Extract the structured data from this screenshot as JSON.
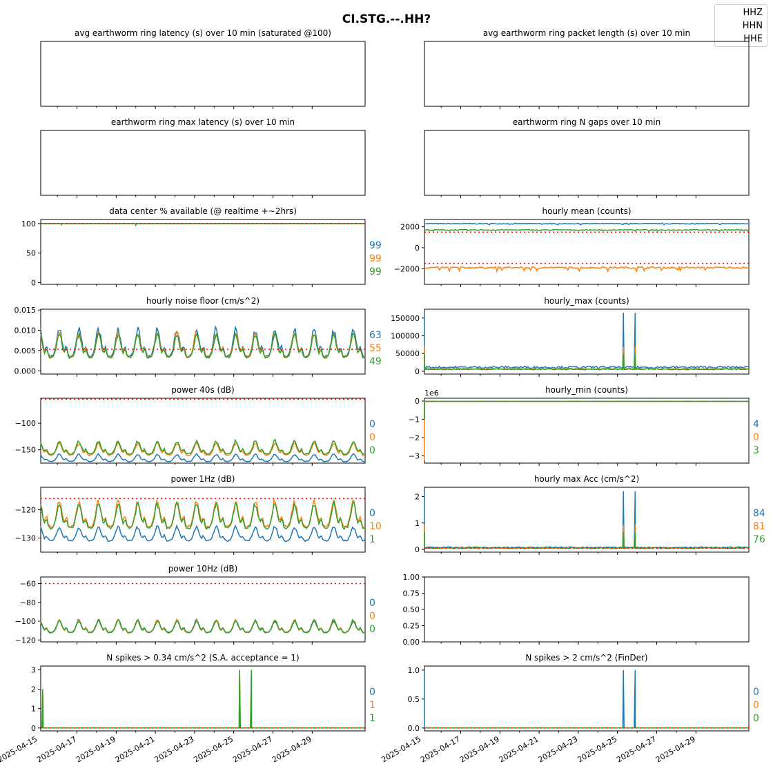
{
  "figure": {
    "suptitle": "CI.STG.--.HH?",
    "legend": [
      "HHZ",
      "HHN",
      "HHE"
    ],
    "colors": {
      "HHZ": "#1f77b4",
      "HHN": "#ff7f0e",
      "HHE": "#2ca02c",
      "threshold": "#ff0000"
    },
    "date_ticks": [
      "2025-04-15",
      "2025-04-17",
      "2025-04-19",
      "2025-04-21",
      "2025-04-23",
      "2025-04-25",
      "2025-04-27",
      "2025-04-29"
    ]
  },
  "chart_data": [
    {
      "id": "avg_latency",
      "type": "line",
      "title": "avg earthworm ring latency (s)   over 10 min (saturated @100)",
      "series": [],
      "stats": []
    },
    {
      "id": "avg_packet",
      "type": "line",
      "title": "avg earthworm ring packet length (s)   over 10 min",
      "series": [],
      "stats": []
    },
    {
      "id": "max_latency",
      "type": "line",
      "title": "earthworm ring max latency (s)   over 10 min",
      "series": [],
      "stats": []
    },
    {
      "id": "n_gaps",
      "type": "line",
      "title": "earthworm ring N gaps   over 10 min",
      "series": [],
      "stats": []
    },
    {
      "id": "pct_available",
      "type": "line",
      "title": "data center % available (@ realtime +~2hrs)",
      "ylim": [
        -3,
        107
      ],
      "yticks": [
        0,
        50,
        100
      ],
      "yticklabels": [
        "0",
        "50",
        "100"
      ],
      "threshold": [
        100
      ],
      "pattern": "flat",
      "base": [
        100,
        100,
        100
      ],
      "amp": [
        0,
        0,
        0
      ],
      "dips": [
        [
          1.2,
          98
        ],
        [
          5.0,
          97
        ]
      ],
      "stats": [
        "99",
        "99",
        "99"
      ]
    },
    {
      "id": "hourly_mean",
      "type": "line",
      "title": "hourly mean (counts)",
      "ylim": [
        -3500,
        2700
      ],
      "yticks": [
        -2000,
        0,
        2000
      ],
      "yticklabels": [
        "−2000",
        "0",
        "2000"
      ],
      "threshold": [
        1500,
        -1500
      ],
      "pattern": "mean",
      "base": [
        2300,
        -1900,
        1700
      ],
      "amp": [
        80,
        150,
        80
      ],
      "stats": []
    },
    {
      "id": "noise_floor",
      "type": "line",
      "title": "hourly noise floor (cm/s^2)",
      "ylim": [
        -0.0008,
        0.0152
      ],
      "yticks": [
        0,
        0.005,
        0.01,
        0.015
      ],
      "yticklabels": [
        "0.000",
        "0.005",
        "0.010",
        "0.015"
      ],
      "threshold": [
        0.0053
      ],
      "pattern": "diurnal",
      "base": [
        0.0035,
        0.0034,
        0.0033
      ],
      "amp": [
        0.0075,
        0.0065,
        0.0063
      ],
      "stats": [
        "63",
        "55",
        "49"
      ]
    },
    {
      "id": "hourly_max",
      "type": "line",
      "title": "hourly_max (counts)",
      "ylim": [
        -8000,
        175000
      ],
      "yticks": [
        0,
        50000,
        100000,
        150000
      ],
      "yticklabels": [
        "0",
        "50000",
        "100000",
        "150000"
      ],
      "threshold": [],
      "pattern": "spiky",
      "base": [
        10000,
        6000,
        5000
      ],
      "amp": [
        4000,
        2500,
        2000
      ],
      "spikes": [
        [
          0.0,
          165000
        ],
        [
          10.3,
          165000
        ],
        [
          10.9,
          165000
        ]
      ],
      "stats": []
    },
    {
      "id": "power_40s",
      "type": "line",
      "title": "power 40s (dB)",
      "ylim": [
        -175,
        -53
      ],
      "yticks": [
        -100,
        -150
      ],
      "yticklabels": [
        "−100",
        "−150"
      ],
      "threshold": [
        -55
      ],
      "pattern": "diurnal",
      "base": [
        -172,
        -160,
        -158
      ],
      "amp": [
        15,
        25,
        27
      ],
      "stats": [
        "0",
        "0",
        "0"
      ]
    },
    {
      "id": "hourly_min",
      "type": "line",
      "title": "hourly_min (counts)",
      "offset": "1e6",
      "ylim": [
        -3.4,
        0.15
      ],
      "yticks": [
        0,
        -1,
        -2,
        -3
      ],
      "yticklabels": [
        "0",
        "−1",
        "−2",
        "−3"
      ],
      "threshold": [],
      "pattern": "hourlymin",
      "base": [
        -0.02,
        -0.03,
        -0.02
      ],
      "amp": [
        0.005,
        0.005,
        0.005
      ],
      "stats": [
        "4",
        "0",
        "3"
      ]
    },
    {
      "id": "power_1hz",
      "type": "line",
      "title": "power 1Hz (dB)",
      "ylim": [
        -135,
        -112
      ],
      "yticks": [
        -120,
        -130
      ],
      "yticklabels": [
        "−120",
        "−130"
      ],
      "threshold": [
        -116
      ],
      "pattern": "diurnal",
      "base": [
        -131,
        -126,
        -126.5
      ],
      "amp": [
        5.5,
        10,
        9.5
      ],
      "stats": [
        "0",
        "10",
        "1"
      ]
    },
    {
      "id": "max_acc",
      "type": "line",
      "title": "hourly max Acc (cm/s^2)",
      "ylim": [
        -0.1,
        2.35
      ],
      "yticks": [
        0,
        1,
        2
      ],
      "yticklabels": [
        "0",
        "1",
        "2"
      ],
      "threshold": [
        0.05
      ],
      "pattern": "spiky",
      "base": [
        0.07,
        0.05,
        0.05
      ],
      "amp": [
        0.03,
        0.03,
        0.03
      ],
      "spikes": [
        [
          0.0,
          2.2
        ],
        [
          10.3,
          2.2
        ],
        [
          10.9,
          2.2
        ]
      ],
      "stats": [
        "84",
        "81",
        "76"
      ]
    },
    {
      "id": "power_10hz",
      "type": "line",
      "title": "power 10Hz (dB)",
      "ylim": [
        -122,
        -53
      ],
      "yticks": [
        -60,
        -80,
        -100,
        -120
      ],
      "yticklabels": [
        "−60",
        "−80",
        "−100",
        "−120"
      ],
      "threshold": [
        -60
      ],
      "pattern": "diurnal",
      "base": [
        -112,
        -112,
        -112
      ],
      "amp": [
        14,
        14,
        14
      ],
      "stats": [
        "0",
        "0",
        "0"
      ]
    },
    {
      "id": "empty_axes",
      "type": "line",
      "title": "",
      "ylim": [
        0,
        1
      ],
      "yticks": [
        0,
        0.25,
        0.5,
        0.75,
        1.0
      ],
      "yticklabels": [
        "0.00",
        "0.25",
        "0.50",
        "0.75",
        "1.00"
      ],
      "threshold": [],
      "pattern": "none",
      "series": [],
      "stats": []
    },
    {
      "id": "spikes_034",
      "type": "line",
      "title": "N spikes > 0.34 cm/s^2 (S.A. acceptance = 1)",
      "ylim": [
        -0.15,
        3.2
      ],
      "yticks": [
        0,
        1,
        2,
        3
      ],
      "yticklabels": [
        "0",
        "1",
        "2",
        "3"
      ],
      "threshold": [
        0
      ],
      "pattern": "spikes",
      "spikes": [
        [
          0.25,
          2
        ],
        [
          10.3,
          3
        ],
        [
          10.9,
          3
        ]
      ],
      "stats": [
        "0",
        "1",
        "1"
      ]
    },
    {
      "id": "spikes_2",
      "type": "line",
      "title": "N spikes > 2 cm/s^2 (FinDer)",
      "ylim": [
        -0.05,
        1.07
      ],
      "yticks": [
        0,
        0.5,
        1
      ],
      "yticklabels": [
        "0.0",
        "0.5",
        "1.0"
      ],
      "threshold": [
        0
      ],
      "pattern": "spikes",
      "spikes": [
        [
          0.0,
          1
        ],
        [
          10.3,
          1
        ],
        [
          10.9,
          1
        ]
      ],
      "stats": [
        "0",
        "0",
        "0"
      ]
    }
  ]
}
